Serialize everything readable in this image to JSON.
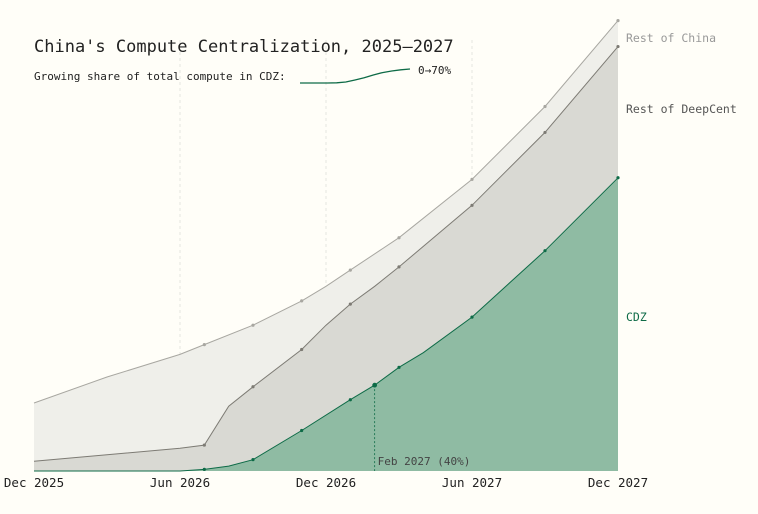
{
  "chart_data": {
    "type": "area",
    "title": "China's Compute Centralization, 2025–2027",
    "subtitle": "Growing share of total compute in CDZ:",
    "sparkline_label": "0→70%",
    "x_ticks": [
      {
        "x": "2025-12",
        "label": "Dec 2025"
      },
      {
        "x": "2026-06",
        "label": "Jun 2026"
      },
      {
        "x": "2026-12",
        "label": "Dec 2026"
      },
      {
        "x": "2027-06",
        "label": "Jun 2027"
      },
      {
        "x": "2027-12",
        "label": "Dec 2027"
      }
    ],
    "xlim": [
      "2025-12",
      "2027-12"
    ],
    "grid": "vertical-dashed",
    "legend": "right-end labels",
    "series": [
      {
        "name": "CDZ",
        "color": "#0e6b47",
        "fill": "#8fbba3",
        "points": [
          {
            "x": "2025-12",
            "y": 0
          },
          {
            "x": "2026-06",
            "y": 0
          },
          {
            "x": "2026-07",
            "y": 1
          },
          {
            "x": "2026-08",
            "y": 3
          },
          {
            "x": "2026-09",
            "y": 7
          },
          {
            "x": "2026-11",
            "y": 25
          },
          {
            "x": "2027-01",
            "y": 44
          },
          {
            "x": "2027-02",
            "y": 53
          },
          {
            "x": "2027-03",
            "y": 64
          },
          {
            "x": "2027-04",
            "y": 73
          },
          {
            "x": "2027-06",
            "y": 95
          },
          {
            "x": "2027-09",
            "y": 136
          },
          {
            "x": "2027-12",
            "y": 181
          }
        ],
        "markers": [
          "2026-07",
          "2026-09",
          "2026-11",
          "2027-01",
          "2027-03",
          "2027-06",
          "2027-09",
          "2027-12"
        ]
      },
      {
        "name": "Rest of DeepCent",
        "color": "#7d7b74",
        "fill": "#d9d9d3",
        "points": [
          {
            "x": "2025-12",
            "y": 6
          },
          {
            "x": "2026-03",
            "y": 10
          },
          {
            "x": "2026-06",
            "y": 14
          },
          {
            "x": "2026-07",
            "y": 16
          },
          {
            "x": "2026-08",
            "y": 40
          },
          {
            "x": "2026-09",
            "y": 52
          },
          {
            "x": "2026-11",
            "y": 75
          },
          {
            "x": "2026-12",
            "y": 90
          },
          {
            "x": "2027-01",
            "y": 103
          },
          {
            "x": "2027-02",
            "y": 114
          },
          {
            "x": "2027-03",
            "y": 126
          },
          {
            "x": "2027-06",
            "y": 164
          },
          {
            "x": "2027-09",
            "y": 209
          },
          {
            "x": "2027-12",
            "y": 262
          }
        ],
        "markers": [
          "2026-07",
          "2026-09",
          "2026-11",
          "2027-01",
          "2027-03",
          "2027-06",
          "2027-09",
          "2027-12"
        ]
      },
      {
        "name": "Rest of China",
        "color": "#a8a7a1",
        "fill": "#efefea",
        "points": [
          {
            "x": "2025-12",
            "y": 42
          },
          {
            "x": "2026-03",
            "y": 58
          },
          {
            "x": "2026-06",
            "y": 72
          },
          {
            "x": "2026-07",
            "y": 78
          },
          {
            "x": "2026-09",
            "y": 90
          },
          {
            "x": "2026-11",
            "y": 105
          },
          {
            "x": "2026-12",
            "y": 114
          },
          {
            "x": "2027-01",
            "y": 124
          },
          {
            "x": "2027-03",
            "y": 144
          },
          {
            "x": "2027-06",
            "y": 180
          },
          {
            "x": "2027-09",
            "y": 225
          },
          {
            "x": "2027-12",
            "y": 278
          }
        ],
        "markers": [
          "2026-07",
          "2026-09",
          "2026-11",
          "2027-01",
          "2027-03",
          "2027-06",
          "2027-09",
          "2027-12"
        ]
      }
    ],
    "annotation": {
      "x": "2027-02",
      "label": "Feb 2027 (40%)",
      "series": "CDZ"
    },
    "sparkline": [
      0,
      0,
      0,
      0,
      1,
      5,
      15,
      26,
      40,
      52,
      60,
      66,
      70
    ],
    "sparkline_range": [
      0,
      70
    ]
  }
}
